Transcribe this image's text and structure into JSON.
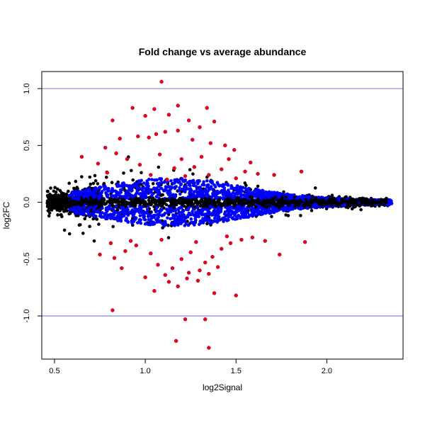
{
  "chart_data": {
    "type": "scatter",
    "title": "Fold change vs average abundance",
    "xlabel": "log2Signal",
    "ylabel": "log2FC",
    "xlim": [
      0.43,
      2.42
    ],
    "ylim": [
      -1.38,
      1.15
    ],
    "x_ticks": [
      0.5,
      1.0,
      1.5,
      2.0
    ],
    "x_tick_labels": [
      "0.5",
      "1.0",
      "1.5",
      "2.0"
    ],
    "y_ticks": [
      1.0,
      0.5,
      0.0,
      -0.5,
      -1.0
    ],
    "y_tick_labels": [
      "1.0",
      "0.5",
      "0.0",
      "-0.5",
      "-1.0"
    ],
    "reference_lines": [
      {
        "axis": "y",
        "value": 1.0,
        "color": "#8888e8"
      },
      {
        "axis": "y",
        "value": -1.0,
        "color": "#8888e8"
      }
    ],
    "grid": false,
    "legend": "none",
    "colors": {
      "not_significant": "#000000",
      "moderate": "#0000ff",
      "large_change": "#ee0020"
    },
    "series": [
      {
        "color": "#ee0020",
        "points": [
          [
            1.09,
            1.06
          ],
          [
            1.18,
            0.85
          ],
          [
            1.34,
            0.83
          ],
          [
            0.93,
            0.83
          ],
          [
            1.05,
            0.82
          ],
          [
            0.82,
            0.72
          ],
          [
            1.13,
            0.77
          ],
          [
            1.0,
            0.76
          ],
          [
            1.24,
            0.72
          ],
          [
            1.38,
            0.71
          ],
          [
            1.3,
            0.66
          ],
          [
            1.11,
            0.62
          ],
          [
            1.06,
            0.6
          ],
          [
            1.18,
            0.63
          ],
          [
            1.02,
            0.57
          ],
          [
            0.86,
            0.56
          ],
          [
            0.96,
            0.58
          ],
          [
            1.26,
            0.55
          ],
          [
            1.36,
            0.52
          ],
          [
            0.78,
            0.48
          ],
          [
            1.44,
            0.5
          ],
          [
            1.49,
            0.46
          ],
          [
            0.65,
            0.4
          ],
          [
            0.84,
            0.43
          ],
          [
            0.9,
            0.38
          ],
          [
            1.08,
            0.42
          ],
          [
            1.2,
            0.38
          ],
          [
            1.31,
            0.4
          ],
          [
            1.46,
            0.38
          ],
          [
            1.58,
            0.35
          ],
          [
            0.74,
            0.34
          ],
          [
            0.97,
            0.33
          ],
          [
            1.16,
            0.3
          ],
          [
            1.27,
            0.31
          ],
          [
            1.42,
            0.29
          ],
          [
            1.55,
            0.27
          ],
          [
            1.62,
            0.25
          ],
          [
            1.71,
            0.24
          ],
          [
            1.86,
            0.27
          ],
          [
            0.79,
            0.26
          ],
          [
            1.03,
            0.24
          ],
          [
            1.22,
            0.23
          ],
          [
            1.35,
            0.24
          ],
          [
            1.12,
            0.2
          ],
          [
            1.5,
            0.21
          ],
          [
            0.75,
            -0.46
          ],
          [
            0.83,
            -0.49
          ],
          [
            0.89,
            -0.43
          ],
          [
            0.95,
            -0.38
          ],
          [
            1.03,
            -0.45
          ],
          [
            1.07,
            -0.55
          ],
          [
            1.11,
            -0.64
          ],
          [
            1.15,
            -0.58
          ],
          [
            1.2,
            -0.5
          ],
          [
            1.25,
            -0.44
          ],
          [
            1.3,
            -0.6
          ],
          [
            1.33,
            -0.53
          ],
          [
            1.37,
            -0.48
          ],
          [
            1.42,
            -0.41
          ],
          [
            1.47,
            -0.36
          ],
          [
            1.53,
            -0.33
          ],
          [
            1.59,
            -0.31
          ],
          [
            1.66,
            -0.34
          ],
          [
            1.74,
            -0.46
          ],
          [
            1.88,
            -0.35
          ],
          [
            0.87,
            -0.58
          ],
          [
            1.0,
            -0.66
          ],
          [
            1.13,
            -0.7
          ],
          [
            1.24,
            -0.62
          ],
          [
            1.4,
            -0.57
          ],
          [
            0.81,
            -0.36
          ],
          [
            0.92,
            -0.34
          ],
          [
            1.09,
            -0.33
          ],
          [
            1.28,
            -0.35
          ],
          [
            1.45,
            -0.3
          ],
          [
            1.05,
            -0.78
          ],
          [
            1.18,
            -0.74
          ],
          [
            1.29,
            -0.69
          ],
          [
            1.38,
            -0.8
          ],
          [
            1.5,
            -0.82
          ],
          [
            1.23,
            -0.67
          ],
          [
            1.35,
            -0.63
          ],
          [
            0.82,
            -0.95
          ],
          [
            1.22,
            -1.03
          ],
          [
            1.33,
            -1.03
          ],
          [
            1.17,
            -1.22
          ],
          [
            1.35,
            -1.28
          ]
        ]
      }
    ]
  }
}
